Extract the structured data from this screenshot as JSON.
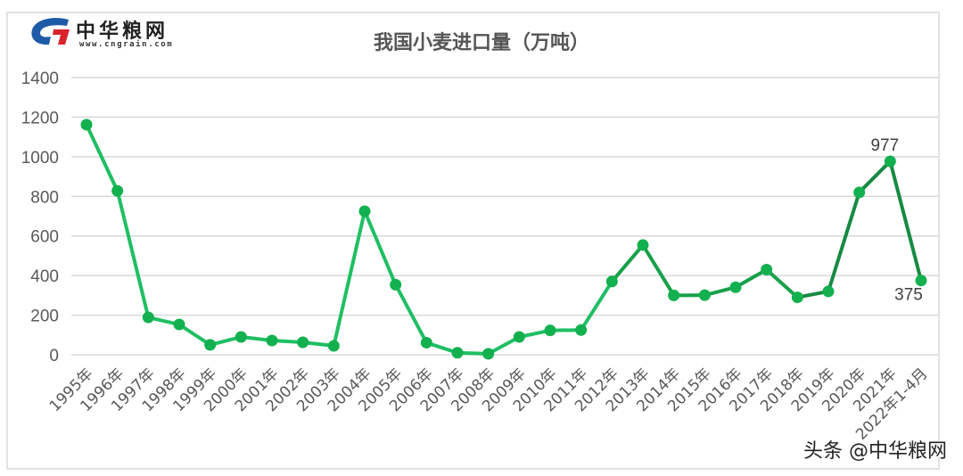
{
  "logo": {
    "name_cn": "中华粮网",
    "url_text": "www.cngrain.com",
    "colors": {
      "blue": "#1d5aa8",
      "red": "#d9242b"
    }
  },
  "watermark": "头条 @中华粮网",
  "colors": {
    "line_light": "#1fbf63",
    "line_dark": "#178a42",
    "marker": "#13b04f",
    "grid": "#d9d9d9",
    "axis_text": "#595959",
    "label_text": "#404040"
  },
  "chart_data": {
    "type": "line",
    "title": "我国小麦进口量（万吨）",
    "xlabel": "",
    "ylabel": "",
    "ylim": [
      0,
      1400
    ],
    "yticks": [
      0,
      200,
      400,
      600,
      800,
      1000,
      1200,
      1400
    ],
    "grid": true,
    "legend": "none",
    "categories": [
      "1995年",
      "1996年",
      "1997年",
      "1998年",
      "1999年",
      "2000年",
      "2001年",
      "2002年",
      "2003年",
      "2004年",
      "2005年",
      "2006年",
      "2007年",
      "2008年",
      "2009年",
      "2010年",
      "2011年",
      "2012年",
      "2013年",
      "2014年",
      "2015年",
      "2016年",
      "2017年",
      "2018年",
      "2019年",
      "2020年",
      "2021年",
      "2022年1-4月"
    ],
    "series": [
      {
        "name": "我国小麦进口量（万吨）",
        "values": [
          1162,
          828,
          189,
          153,
          50,
          90,
          72,
          63,
          45,
          725,
          354,
          61,
          10,
          5,
          90,
          123,
          125,
          370,
          554,
          300,
          301,
          341,
          430,
          290,
          320,
          820,
          977,
          375
        ]
      }
    ],
    "annotations": [
      {
        "index": 26,
        "text": "977",
        "position": "above"
      },
      {
        "index": 27,
        "text": "375",
        "position": "below"
      }
    ]
  }
}
